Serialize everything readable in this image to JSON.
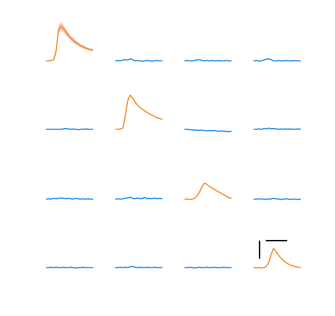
{
  "chart_data": {
    "type": "line",
    "title": "",
    "grid": false,
    "layout": {
      "rows": 4,
      "cols": 4
    },
    "colors": {
      "responsive": "#F28A1E",
      "nonresponsive": "#1E88E5",
      "band": "#F4A6A0",
      "scalebar": "#000000"
    },
    "shared_ylim": [
      -0.15,
      1.0
    ],
    "x": [
      0,
      1,
      2,
      3,
      4,
      5,
      6,
      7,
      8,
      9,
      10,
      11,
      12,
      13,
      14,
      15,
      16,
      17,
      18,
      19
    ],
    "panels": [
      {
        "id": "r1c1",
        "responsive": true,
        "values": [
          0.0,
          0.0,
          0.01,
          0.03,
          0.25,
          0.78,
          0.86,
          0.8,
          0.72,
          0.64,
          0.57,
          0.51,
          0.46,
          0.42,
          0.38,
          0.35,
          0.32,
          0.3,
          0.28,
          0.27
        ],
        "band": [
          0.01,
          0.01,
          0.01,
          0.02,
          0.05,
          0.09,
          0.1,
          0.09,
          0.08,
          0.07,
          0.06,
          0.06,
          0.05,
          0.05,
          0.04,
          0.04,
          0.04,
          0.03,
          0.03,
          0.03
        ]
      },
      {
        "id": "r1c2",
        "responsive": false,
        "values": [
          0.0,
          0.01,
          0.0,
          0.02,
          0.03,
          0.02,
          0.05,
          0.03,
          0.0,
          0.01,
          0.0,
          -0.01,
          0.0,
          0.01,
          0.0,
          -0.01,
          0.0,
          0.01,
          0.0,
          0.0
        ]
      },
      {
        "id": "r1c3",
        "responsive": false,
        "values": [
          0.0,
          0.01,
          0.0,
          0.0,
          0.01,
          0.02,
          0.03,
          0.01,
          0.0,
          0.01,
          0.0,
          0.01,
          0.0,
          0.0,
          0.01,
          0.0,
          0.0,
          0.01,
          0.0,
          0.0
        ]
      },
      {
        "id": "r1c4",
        "responsive": false,
        "values": [
          0.0,
          0.01,
          -0.01,
          0.0,
          0.02,
          0.04,
          0.05,
          0.03,
          0.0,
          0.0,
          0.01,
          0.0,
          0.0,
          0.01,
          0.0,
          0.0,
          0.01,
          0.0,
          0.0,
          0.0
        ]
      },
      {
        "id": "r2c1",
        "responsive": false,
        "values": [
          0.0,
          0.0,
          0.0,
          0.0,
          0.0,
          0.0,
          0.0,
          0.01,
          0.02,
          0.01,
          0.0,
          0.01,
          0.0,
          -0.01,
          0.0,
          0.0,
          0.01,
          0.0,
          0.0,
          0.0
        ]
      },
      {
        "id": "r2c2",
        "responsive": true,
        "values": [
          0.0,
          0.0,
          0.01,
          0.03,
          0.35,
          0.72,
          0.85,
          0.78,
          0.68,
          0.6,
          0.54,
          0.5,
          0.46,
          0.42,
          0.38,
          0.35,
          0.32,
          0.29,
          0.27,
          0.25
        ]
      },
      {
        "id": "r2c3",
        "responsive": false,
        "values": [
          0.0,
          0.0,
          -0.01,
          -0.01,
          -0.02,
          -0.02,
          -0.03,
          -0.02,
          -0.03,
          -0.04,
          -0.03,
          -0.04,
          -0.03,
          -0.04,
          -0.05,
          -0.04,
          -0.05,
          -0.05,
          -0.06,
          -0.05
        ]
      },
      {
        "id": "r2c4",
        "responsive": false,
        "values": [
          0.0,
          0.0,
          0.01,
          0.0,
          0.02,
          0.01,
          0.03,
          0.01,
          0.02,
          0.01,
          0.0,
          0.01,
          0.0,
          0.01,
          0.0,
          0.01,
          0.0,
          0.0,
          0.01,
          0.0
        ]
      },
      {
        "id": "r3c1",
        "responsive": false,
        "values": [
          0.0,
          0.01,
          0.0,
          0.02,
          0.01,
          0.02,
          0.03,
          0.02,
          0.01,
          0.02,
          0.01,
          0.0,
          0.02,
          0.01,
          0.0,
          0.01,
          0.0,
          0.01,
          0.0,
          0.0
        ]
      },
      {
        "id": "r3c2",
        "responsive": false,
        "values": [
          0.0,
          0.01,
          0.0,
          0.01,
          0.02,
          0.03,
          0.05,
          0.02,
          0.01,
          0.03,
          0.01,
          0.02,
          0.04,
          0.01,
          0.02,
          0.01,
          0.03,
          0.01,
          0.02,
          0.01
        ]
      },
      {
        "id": "r3c3",
        "responsive": true,
        "values": [
          0.0,
          0.0,
          -0.01,
          0.0,
          0.02,
          0.08,
          0.18,
          0.3,
          0.4,
          0.37,
          0.32,
          0.28,
          0.25,
          0.21,
          0.18,
          0.14,
          0.11,
          0.07,
          0.04,
          0.02
        ]
      },
      {
        "id": "r3c4",
        "responsive": false,
        "values": [
          0.0,
          0.0,
          0.01,
          0.0,
          0.0,
          -0.01,
          0.01,
          0.0,
          0.02,
          0.01,
          0.0,
          -0.01,
          0.0,
          0.01,
          0.0,
          -0.01,
          0.0,
          0.0,
          -0.01,
          0.0
        ]
      },
      {
        "id": "r4c1",
        "responsive": false,
        "values": [
          0.0,
          0.0,
          0.01,
          0.0,
          0.01,
          0.0,
          0.0,
          0.01,
          0.0,
          0.0,
          0.01,
          0.0,
          -0.01,
          0.0,
          0.0,
          0.01,
          0.0,
          0.0,
          0.0,
          0.0
        ]
      },
      {
        "id": "r4c2",
        "responsive": false,
        "values": [
          0.0,
          0.0,
          0.01,
          0.0,
          0.01,
          0.0,
          0.02,
          0.03,
          0.01,
          0.0,
          0.01,
          0.0,
          0.0,
          0.01,
          0.0,
          0.0,
          0.01,
          0.0,
          0.0,
          0.0
        ]
      },
      {
        "id": "r4c3",
        "responsive": false,
        "values": [
          0.0,
          0.0,
          0.01,
          0.0,
          -0.01,
          0.0,
          0.01,
          0.0,
          0.0,
          0.01,
          0.0,
          0.0,
          0.01,
          0.0,
          0.0,
          0.0,
          0.01,
          0.0,
          0.0,
          0.0
        ]
      },
      {
        "id": "r4c4",
        "responsive": true,
        "values": [
          0.0,
          -0.01,
          0.0,
          -0.01,
          0.0,
          0.03,
          0.12,
          0.32,
          0.48,
          0.4,
          0.31,
          0.24,
          0.18,
          0.13,
          0.09,
          0.06,
          0.04,
          0.02,
          0.01,
          0.0
        ]
      }
    ],
    "scale_bar": {
      "panel": "r4c4",
      "present": true
    }
  }
}
